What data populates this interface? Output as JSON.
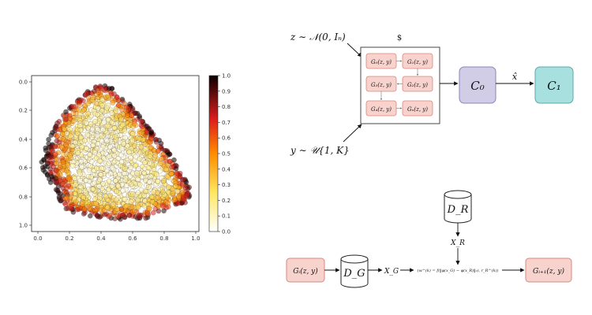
{
  "scatter_panel": {
    "x_ticks": [
      "0.0",
      "0.2",
      "0.4",
      "0.6",
      "0.8",
      "1.0"
    ],
    "y_ticks": [
      "0.0",
      "0.2",
      "0.4",
      "0.6",
      "0.8",
      "1.0"
    ],
    "colorbar_ticks": [
      "1.0",
      "0.9",
      "0.8",
      "0.7",
      "0.6",
      "0.5",
      "0.4",
      "0.3",
      "0.2",
      "0.1",
      "0.0"
    ],
    "colormap": "hot_r",
    "x_range": [
      0,
      1
    ],
    "y_range": [
      0,
      1
    ],
    "y_axis_inverted": true,
    "description_points": "dense cloud of semi-transparent points; dark (high value) near outer boundary, pale yellow (low value) in interior"
  },
  "diagram_top": {
    "dollar_label": "$",
    "z_input": "z ∼ 𝒩(0, Iₙ)",
    "y_input": "y ∼ 𝒰{1, K}",
    "generators": [
      {
        "label": "G₀(z, y)"
      },
      {
        "label": "G₁(z, y)"
      },
      {
        "label": "G₃(z, y)"
      },
      {
        "label": "G₂(z, y)"
      },
      {
        "label": "G₄(z, y)"
      },
      {
        "label": "Gₙ(z, y)"
      }
    ],
    "c0_label": "C₀",
    "xhat_label": "x̂",
    "c1_label": "C₁"
  },
  "diagram_bottom": {
    "gi_label": "Gᵢ(z, y)",
    "dg_label": "D_G",
    "xg_label": "X_G",
    "dr_label": "D_R",
    "xr_label": "X_R",
    "formula_label": "(w^(k) = f(‖φ(x_G) − φ(x_R)‖₂), r_R^(k))",
    "gi1_label": "Gᵢ₊₁(z, y)"
  },
  "colors": {
    "generator_fill": "#f8d2cd",
    "generator_stroke": "#d6887e",
    "c0_fill": "#d1cde6",
    "c0_stroke": "#8b83b8",
    "c1_fill": "#a8e0e0",
    "c1_stroke": "#58a8a8"
  }
}
